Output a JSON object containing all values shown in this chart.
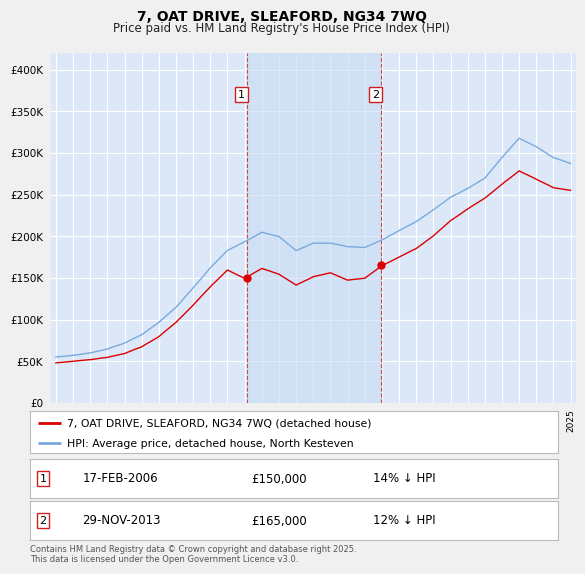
{
  "title": "7, OAT DRIVE, SLEAFORD, NG34 7WQ",
  "subtitle": "Price paid vs. HM Land Registry's House Price Index (HPI)",
  "ylim": [
    0,
    420000
  ],
  "yticks": [
    0,
    50000,
    100000,
    150000,
    200000,
    250000,
    300000,
    350000,
    400000
  ],
  "ytick_labels": [
    "£0",
    "£50K",
    "£100K",
    "£150K",
    "£200K",
    "£250K",
    "£300K",
    "£350K",
    "£400K"
  ],
  "plot_bg_color": "#dce8f8",
  "grid_color": "#ffffff",
  "hpi_color": "#7aaadd",
  "price_color": "#dd0000",
  "marker1_date": "17-FEB-2006",
  "marker1_price": "£150,000",
  "marker1_hpi_text": "14% ↓ HPI",
  "marker2_date": "29-NOV-2013",
  "marker2_price": "£165,000",
  "marker2_hpi_text": "12% ↓ HPI",
  "legend_line1": "7, OAT DRIVE, SLEAFORD, NG34 7WQ (detached house)",
  "legend_line2": "HPI: Average price, detached house, North Kesteven",
  "footer": "Contains HM Land Registry data © Crown copyright and database right 2025.\nThis data is licensed under the Open Government Licence v3.0.",
  "marker1_x": 2006.12,
  "marker2_x": 2013.92,
  "marker1_y": 150000,
  "marker2_y": 165000,
  "shaded_x_start": 2006.12,
  "shaded_x_end": 2013.92,
  "xlim_left": 1994.7,
  "xlim_right": 2025.3
}
